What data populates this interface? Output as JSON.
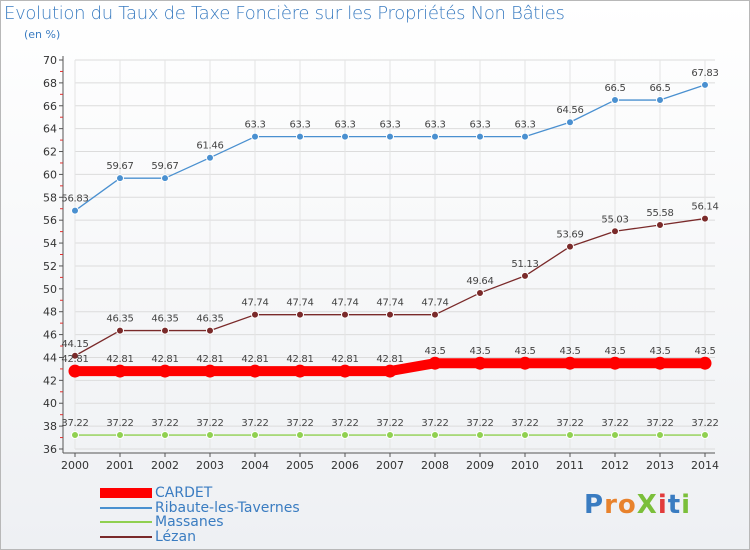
{
  "title": "Evolution du Taux de Taxe Foncière sur les Propriétés Non Bâties",
  "unit_label": "(en %)",
  "logo": {
    "text": "ProXiti",
    "colors": [
      "#3a7cc1",
      "#e8822c",
      "#e8822c",
      "#7bbf3a",
      "#e23b3b",
      "#3a7cc1",
      "#7bbf3a"
    ]
  },
  "chart_data": {
    "type": "line",
    "title": "Evolution du Taux de Taxe Foncière sur les Propriétés Non Bâties",
    "ylabel": "(en %)",
    "xlabel": "",
    "x": [
      "2000",
      "2001",
      "2002",
      "2003",
      "2004",
      "2005",
      "2006",
      "2007",
      "2008",
      "2009",
      "2010",
      "2011",
      "2012",
      "2013",
      "2014"
    ],
    "ylim": [
      36,
      70
    ],
    "yticks": [
      36,
      38,
      40,
      42,
      44,
      46,
      48,
      50,
      52,
      54,
      56,
      58,
      60,
      62,
      64,
      66,
      68,
      70
    ],
    "grid": true,
    "legend_position": "bottom-left",
    "series": [
      {
        "name": "CARDET",
        "color": "#ff0000",
        "values": [
          42.81,
          42.81,
          42.81,
          42.81,
          42.81,
          42.81,
          42.81,
          42.81,
          43.5,
          43.5,
          43.5,
          43.5,
          43.5,
          43.5,
          43.5
        ],
        "labels": [
          "42.81",
          "42.81",
          "42.81",
          "42.81",
          "42.81",
          "42.81",
          "42.81",
          "42.81",
          "43.5",
          "43.5",
          "43.5",
          "43.5",
          "43.5",
          "43.5",
          "43.5"
        ]
      },
      {
        "name": "Ribaute-les-Tavernes",
        "color": "#4a90d0",
        "values": [
          56.83,
          59.67,
          59.67,
          61.46,
          63.3,
          63.3,
          63.3,
          63.3,
          63.3,
          63.3,
          63.3,
          64.56,
          66.5,
          66.5,
          67.83
        ],
        "labels": [
          "56.83",
          "59.67",
          "59.67",
          "61.46",
          "63.3",
          "63.3",
          "63.3",
          "63.3",
          "63.3",
          "63.3",
          "63.3",
          "64.56",
          "66.5",
          "66.5",
          "67.83"
        ]
      },
      {
        "name": "Massanes",
        "color": "#90d050",
        "values": [
          37.22,
          37.22,
          37.22,
          37.22,
          37.22,
          37.22,
          37.22,
          37.22,
          37.22,
          37.22,
          37.22,
          37.22,
          37.22,
          37.22,
          37.22
        ],
        "labels": [
          "37.22",
          "37.22",
          "37.22",
          "37.22",
          "37.22",
          "37.22",
          "37.22",
          "37.22",
          "37.22",
          "37.22",
          "37.22",
          "37.22",
          "37.22",
          "37.22",
          "37.22"
        ]
      },
      {
        "name": "Lézan",
        "color": "#7a2a2a",
        "values": [
          44.15,
          46.35,
          46.35,
          46.35,
          47.74,
          47.74,
          47.74,
          47.74,
          47.74,
          49.64,
          51.13,
          53.69,
          55.03,
          55.58,
          56.14
        ],
        "labels": [
          "44.15",
          "46.35",
          "46.35",
          "46.35",
          "47.74",
          "47.74",
          "47.74",
          "47.74",
          "47.74",
          "49.64",
          "51.13",
          "53.69",
          "55.03",
          "55.58",
          "56.14"
        ]
      }
    ]
  }
}
